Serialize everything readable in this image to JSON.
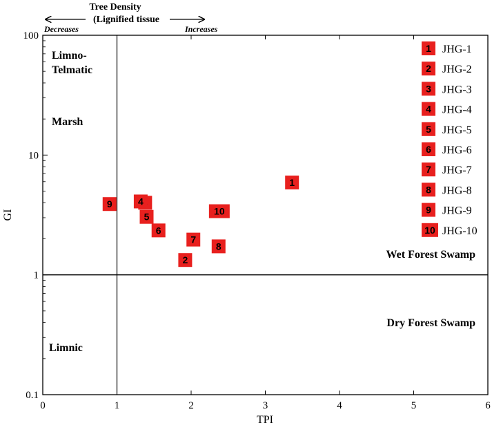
{
  "chart_data": {
    "type": "scatter",
    "xlabel": "TPI",
    "ylabel": "GI",
    "xlim": [
      0,
      6
    ],
    "ylim": [
      0.1,
      100
    ],
    "yscale": "log",
    "x_ticks": [
      "0",
      "1",
      "2",
      "3",
      "4",
      "5",
      "6"
    ],
    "y_ticks": [
      "0.1",
      "1",
      "10",
      "100"
    ],
    "reference_lines": {
      "x": 1,
      "y": 1
    },
    "top_annotation": {
      "title_line1": "Tree Density",
      "title_line2": "(Lignified tissue",
      "left": "Decreases",
      "right": "Increases"
    },
    "regions": {
      "limno_telmatic_1": "Limno-",
      "limno_telmatic_2": "Telmatic",
      "marsh": "Marsh",
      "wet_forest_swamp": "Wet Forest Swamp",
      "dry_forest_swamp": "Dry Forest Swamp",
      "limnic": "Limnic"
    },
    "marker_color": "#e8201e",
    "legend_position": "top-right",
    "points": [
      {
        "id": "1",
        "name": "JHG-1",
        "x": 3.36,
        "y": 5.9
      },
      {
        "id": "2",
        "name": "JHG-2",
        "x": 1.92,
        "y": 1.33
      },
      {
        "id": "3",
        "name": "JHG-3",
        "x": 1.38,
        "y": 4.0
      },
      {
        "id": "4",
        "name": "JHG-4",
        "x": 1.32,
        "y": 4.1
      },
      {
        "id": "5",
        "name": "JHG-5",
        "x": 1.4,
        "y": 3.05
      },
      {
        "id": "6",
        "name": "JHG-6",
        "x": 1.56,
        "y": 2.35
      },
      {
        "id": "7",
        "name": "JHG-7",
        "x": 2.03,
        "y": 1.97
      },
      {
        "id": "8",
        "name": "JHG-8",
        "x": 2.37,
        "y": 1.73
      },
      {
        "id": "9",
        "name": "JHG-9",
        "x": 0.9,
        "y": 3.9
      },
      {
        "id": "10",
        "name": "JHG-10",
        "x": 2.38,
        "y": 3.4
      }
    ]
  }
}
